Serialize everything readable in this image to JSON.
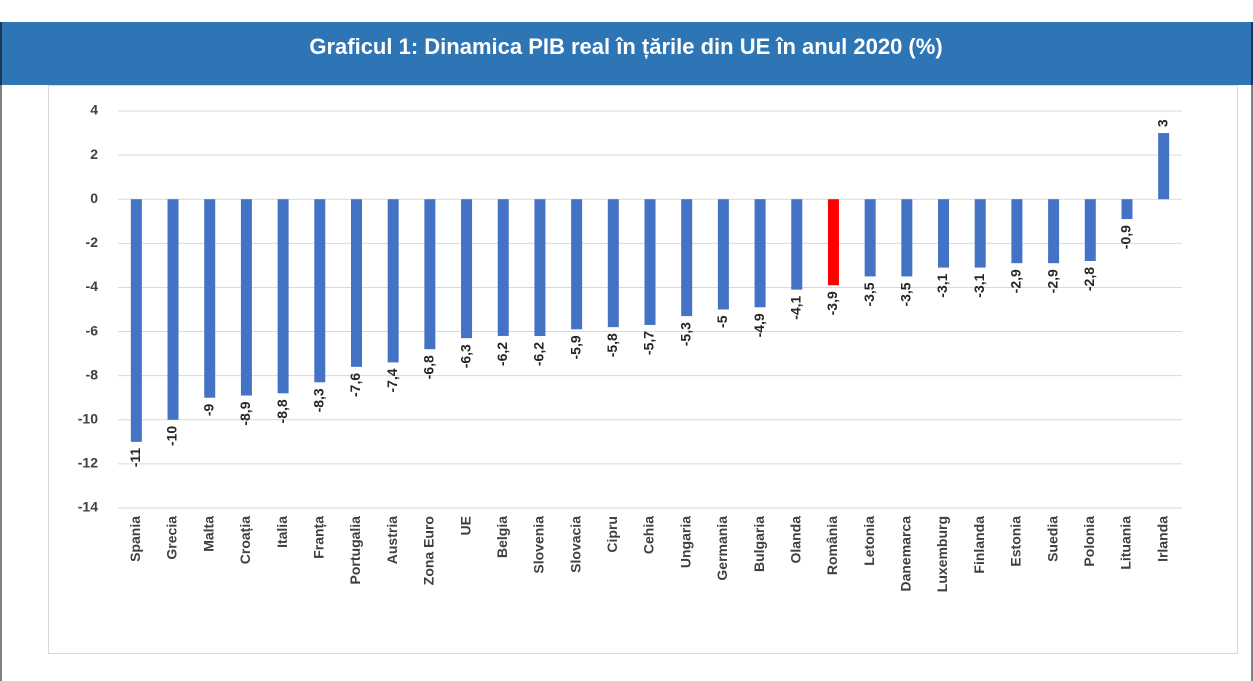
{
  "chart_data": {
    "type": "bar",
    "title": "Graficul 1: Dinamica PIB real în țările din UE în anul 2020 (%)",
    "categories": [
      "Spania",
      "Grecia",
      "Malta",
      "Croația",
      "Italia",
      "Franța",
      "Portugalia",
      "Austria",
      "Zona Euro",
      "UE",
      "Belgia",
      "Slovenia",
      "Slovacia",
      "Cipru",
      "Cehia",
      "Ungaria",
      "Germania",
      "Bulgaria",
      "Olanda",
      "România",
      "Letonia",
      "Danemarca",
      "Luxemburg",
      "Finlanda",
      "Estonia",
      "Suedia",
      "Polonia",
      "Lituania",
      "Irlanda"
    ],
    "values": [
      -11,
      -10,
      -9,
      -8.9,
      -8.8,
      -8.3,
      -7.6,
      -7.4,
      -6.8,
      -6.3,
      -6.2,
      -6.2,
      -5.9,
      -5.8,
      -5.7,
      -5.3,
      -5,
      -4.9,
      -4.1,
      -3.9,
      -3.5,
      -3.5,
      -3.1,
      -3.1,
      -2.9,
      -2.9,
      -2.8,
      -0.9,
      3
    ],
    "value_labels": [
      "-11",
      "-10",
      "-9",
      "-8,9",
      "-8,8",
      "-8,3",
      "-7,6",
      "-7,4",
      "-6,8",
      "-6,3",
      "-6,2",
      "-6,2",
      "-5,9",
      "-5,8",
      "-5,7",
      "-5,3",
      "-5",
      "-4,9",
      "-4,1",
      "-3,9",
      "-3,5",
      "-3,5",
      "-3,1",
      "-3,1",
      "-2,9",
      "-2,9",
      "-2,8",
      "-0,9",
      "3"
    ],
    "colors": [
      "#4472c4",
      "#4472c4",
      "#4472c4",
      "#4472c4",
      "#4472c4",
      "#4472c4",
      "#4472c4",
      "#4472c4",
      "#4472c4",
      "#4472c4",
      "#4472c4",
      "#4472c4",
      "#4472c4",
      "#4472c4",
      "#4472c4",
      "#4472c4",
      "#4472c4",
      "#4472c4",
      "#4472c4",
      "#ff0000",
      "#4472c4",
      "#4472c4",
      "#4472c4",
      "#4472c4",
      "#4472c4",
      "#4472c4",
      "#4472c4",
      "#4472c4",
      "#4472c4"
    ],
    "ylim": [
      -14,
      4
    ],
    "yticks": [
      4,
      2,
      0,
      -2,
      -4,
      -6,
      -8,
      -10,
      -12,
      -14
    ],
    "grid": true
  }
}
